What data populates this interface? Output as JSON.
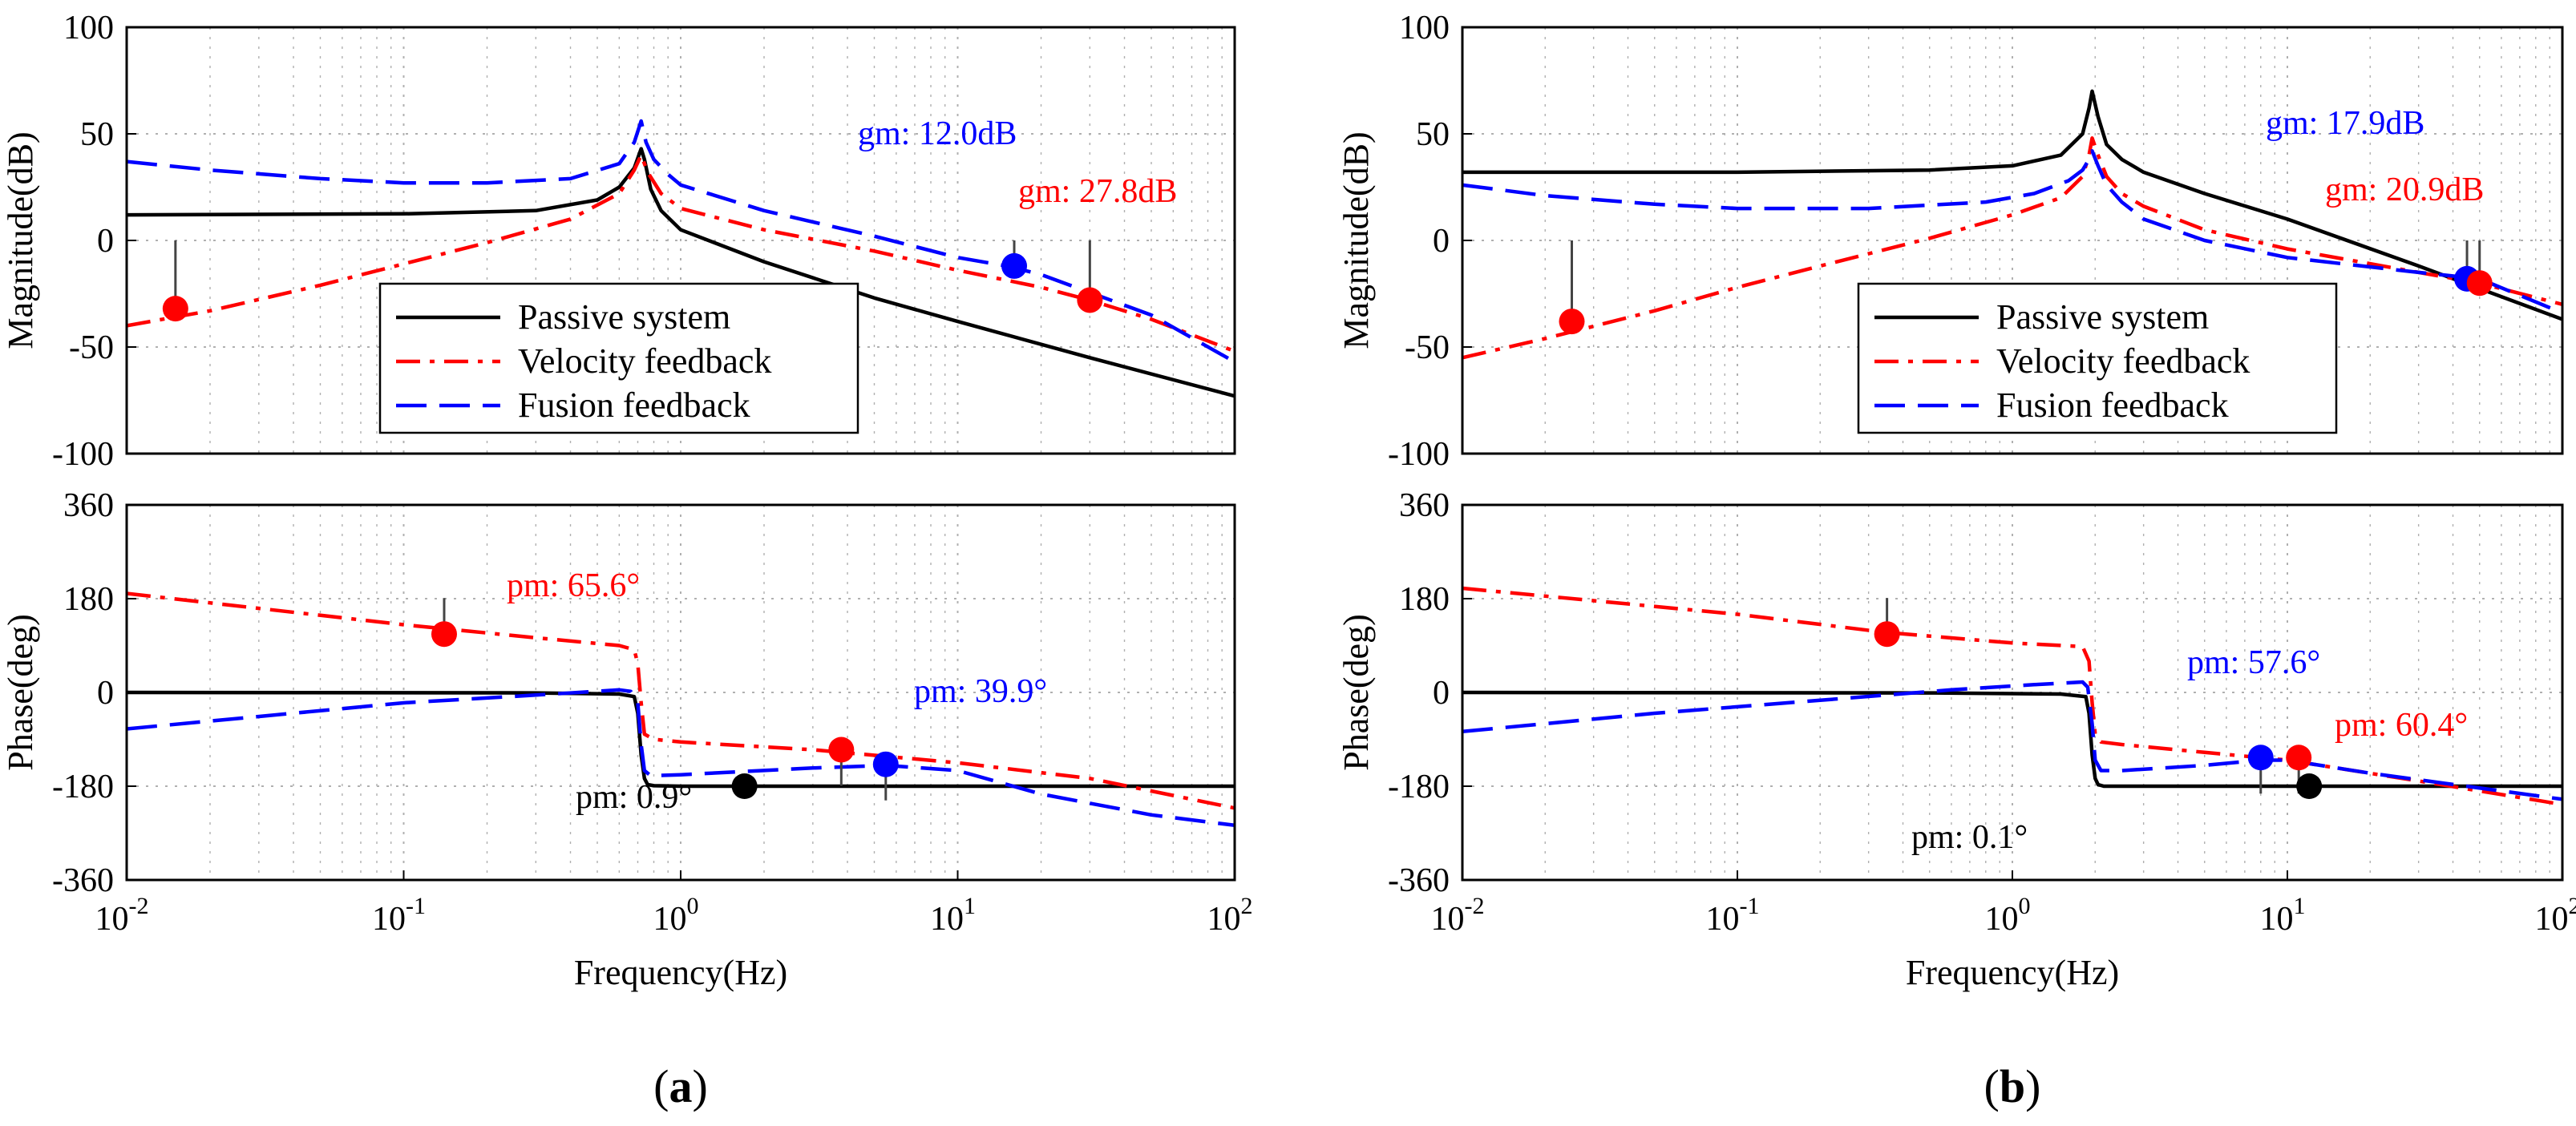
{
  "chart_data": [
    {
      "panel_label": "(a)",
      "panel_letter": "a",
      "type": "line",
      "plots": {
        "magnitude": {
          "ylabel": "Magnitude(dB)",
          "xscale": "log",
          "xlim": [
            0.01,
            100
          ],
          "ylim": [
            -100,
            100
          ],
          "yticks": [
            "100",
            "50",
            "0",
            "-50",
            "-100"
          ],
          "series": [
            {
              "name": "Passive system",
              "color": "#000000",
              "style": "solid",
              "x": [
                0.01,
                0.1,
                0.3,
                0.5,
                0.6,
                0.68,
                0.72,
                0.74,
                0.78,
                0.85,
                1,
                2,
                5,
                10,
                30,
                100
              ],
              "y": [
                12,
                12.5,
                14,
                19,
                25,
                34,
                43,
                38,
                24,
                14,
                5,
                -10,
                -27,
                -38,
                -55,
                -73
              ]
            },
            {
              "name": "Velocity feedback",
              "color": "#ff0000",
              "style": "dashdot",
              "x": [
                0.01,
                0.02,
                0.05,
                0.1,
                0.2,
                0.4,
                0.6,
                0.68,
                0.72,
                0.76,
                0.85,
                1,
                2,
                5,
                10,
                20,
                30,
                50,
                100
              ],
              "y": [
                -40,
                -33,
                -21,
                -11,
                -1,
                10,
                22,
                33,
                40,
                32,
                22,
                15,
                5,
                -5,
                -14,
                -22,
                -28,
                -37,
                -52
              ]
            },
            {
              "name": "Fusion feedback",
              "color": "#0000ff",
              "style": "dashed",
              "x": [
                0.01,
                0.02,
                0.05,
                0.1,
                0.2,
                0.4,
                0.6,
                0.68,
                0.72,
                0.75,
                0.8,
                0.9,
                1,
                2,
                5,
                10,
                15,
                20,
                50,
                100
              ],
              "y": [
                37,
                33,
                29,
                27,
                27,
                29,
                36,
                46,
                56,
                46,
                38,
                31,
                26,
                14,
                2,
                -8,
                -12,
                -16,
                -35,
                -57
              ]
            }
          ],
          "markers": [
            {
              "series": "Velocity feedback",
              "color": "#ff0000",
              "x": 0.015,
              "y": -32
            },
            {
              "series": "Fusion feedback",
              "color": "#0000ff",
              "x": 16,
              "y": -12
            },
            {
              "series": "Velocity feedback",
              "color": "#ff0000",
              "x": 30,
              "y": -28
            }
          ],
          "annotations": [
            {
              "text": "gm: 12.0dB",
              "color": "#0000ff"
            },
            {
              "text": "gm: 27.8dB",
              "color": "#ff0000"
            }
          ],
          "legend_position": "bottom-center"
        },
        "phase": {
          "ylabel": "Phase(deg)",
          "xlabel": "Frequency(Hz)",
          "xscale": "log",
          "xlim": [
            0.01,
            100
          ],
          "ylim": [
            -360,
            360
          ],
          "yticks": [
            "360",
            "180",
            "0",
            "-180",
            "-360"
          ],
          "xticks": [
            {
              "base": "10",
              "exp": "-2"
            },
            {
              "base": "10",
              "exp": "-1"
            },
            {
              "base": "10",
              "exp": "0"
            },
            {
              "base": "10",
              "exp": "1"
            },
            {
              "base": "10",
              "exp": "2"
            }
          ],
          "series": [
            {
              "name": "Passive system",
              "color": "#000000",
              "style": "solid",
              "x": [
                0.01,
                0.3,
                0.6,
                0.68,
                0.7,
                0.72,
                0.74,
                0.76,
                0.8,
                1,
                10,
                100
              ],
              "y": [
                0,
                -1,
                -3,
                -8,
                -40,
                -120,
                -165,
                -177,
                -179,
                -180,
                -180,
                -180
              ]
            },
            {
              "name": "Velocity feedback",
              "color": "#ff0000",
              "style": "dashdot",
              "x": [
                0.01,
                0.1,
                0.3,
                0.6,
                0.68,
                0.7,
                0.72,
                0.74,
                0.8,
                1,
                3,
                10,
                30,
                100
              ],
              "y": [
                190,
                130,
                105,
                90,
                82,
                55,
                -20,
                -80,
                -90,
                -95,
                -110,
                -135,
                -165,
                -222
              ]
            },
            {
              "name": "Fusion feedback",
              "color": "#0000ff",
              "style": "dashed",
              "x": [
                0.01,
                0.1,
                0.3,
                0.6,
                0.66,
                0.7,
                0.72,
                0.74,
                0.78,
                1,
                3,
                5.5,
                10,
                20,
                50,
                100
              ],
              "y": [
                -70,
                -20,
                -5,
                5,
                2,
                -20,
                -100,
                -150,
                -160,
                -158,
                -145,
                -140,
                -150,
                -195,
                -235,
                -255
              ]
            }
          ],
          "markers": [
            {
              "series": "Velocity feedback",
              "color": "#ff0000",
              "x": 0.14,
              "y": 112
            },
            {
              "series": "Velocity feedback",
              "color": "#ff0000",
              "x": 3.8,
              "y": -110
            },
            {
              "series": "Fusion feedback",
              "color": "#0000ff",
              "x": 5.5,
              "y": -138
            },
            {
              "series": "Passive system",
              "color": "#000000",
              "x": 1.7,
              "y": -180
            }
          ],
          "annotations": [
            {
              "text": "pm: 65.6°",
              "color": "#ff0000"
            },
            {
              "text": "pm: 39.9°",
              "color": "#0000ff"
            },
            {
              "text": "pm: 0.9°",
              "color": "#000000"
            }
          ]
        }
      }
    },
    {
      "panel_label": "(b)",
      "panel_letter": "b",
      "type": "line",
      "plots": {
        "magnitude": {
          "ylabel": "Magnitude(dB)",
          "xscale": "log",
          "xlim": [
            0.01,
            100
          ],
          "ylim": [
            -100,
            100
          ],
          "yticks": [
            "100",
            "50",
            "0",
            "-50",
            "-100"
          ],
          "series": [
            {
              "name": "Passive system",
              "color": "#000000",
              "style": "solid",
              "x": [
                0.01,
                0.1,
                0.5,
                1,
                1.5,
                1.8,
                1.9,
                1.95,
                2.05,
                2.2,
                2.5,
                3,
                5,
                10,
                30,
                100
              ],
              "y": [
                32,
                32,
                33,
                35,
                40,
                50,
                62,
                70,
                58,
                45,
                38,
                32,
                22,
                10,
                -12,
                -37
              ]
            },
            {
              "name": "Velocity feedback",
              "color": "#ff0000",
              "style": "dashdot",
              "x": [
                0.01,
                0.02,
                0.05,
                0.1,
                0.2,
                0.5,
                1,
                1.5,
                1.8,
                1.9,
                1.95,
                2.05,
                2.2,
                2.5,
                3,
                5,
                10,
                30,
                50,
                100
              ],
              "y": [
                -55,
                -46,
                -33,
                -22,
                -12,
                1,
                12,
                20,
                30,
                40,
                48,
                40,
                30,
                22,
                16,
                5,
                -4,
                -15,
                -20,
                -30
              ]
            },
            {
              "name": "Fusion feedback",
              "color": "#0000ff",
              "style": "dashed",
              "x": [
                0.01,
                0.02,
                0.05,
                0.1,
                0.3,
                0.8,
                1.2,
                1.6,
                1.8,
                1.9,
                1.95,
                2.05,
                2.2,
                2.5,
                3,
                5,
                10,
                30,
                50,
                100
              ],
              "y": [
                26,
                21,
                17,
                15,
                15,
                18,
                22,
                28,
                33,
                38,
                42,
                35,
                26,
                18,
                10,
                0,
                -8,
                -15,
                -18,
                -34
              ]
            }
          ],
          "markers": [
            {
              "series": "Velocity feedback",
              "color": "#ff0000",
              "x": 0.025,
              "y": -38
            },
            {
              "series": "Fusion feedback",
              "color": "#0000ff",
              "x": 45,
              "y": -18
            },
            {
              "series": "Velocity feedback",
              "color": "#ff0000",
              "x": 50,
              "y": -20
            }
          ],
          "annotations": [
            {
              "text": "gm: 17.9dB",
              "color": "#0000ff"
            },
            {
              "text": "gm: 20.9dB",
              "color": "#ff0000"
            }
          ],
          "legend_position": "bottom-center"
        },
        "phase": {
          "ylabel": "Phase(deg)",
          "xlabel": "Frequency(Hz)",
          "xscale": "log",
          "xlim": [
            0.01,
            100
          ],
          "ylim": [
            -360,
            360
          ],
          "yticks": [
            "360",
            "180",
            "0",
            "-180",
            "-360"
          ],
          "xticks": [
            {
              "base": "10",
              "exp": "-2"
            },
            {
              "base": "10",
              "exp": "-1"
            },
            {
              "base": "10",
              "exp": "0"
            },
            {
              "base": "10",
              "exp": "1"
            },
            {
              "base": "10",
              "exp": "2"
            }
          ],
          "series": [
            {
              "name": "Passive system",
              "color": "#000000",
              "style": "solid",
              "x": [
                0.01,
                0.5,
                1.5,
                1.85,
                1.9,
                1.95,
                2.0,
                2.05,
                2.15,
                3,
                10,
                100
              ],
              "y": [
                0,
                -1,
                -3,
                -8,
                -40,
                -120,
                -165,
                -177,
                -180,
                -180,
                -180,
                -180
              ]
            },
            {
              "name": "Velocity feedback",
              "color": "#ff0000",
              "style": "dashdot",
              "x": [
                0.01,
                0.1,
                0.35,
                1,
                1.8,
                1.9,
                1.95,
                2.0,
                2.1,
                2.5,
                5,
                10,
                30,
                100
              ],
              "y": [
                200,
                150,
                115,
                95,
                88,
                60,
                -20,
                -80,
                -95,
                -100,
                -115,
                -130,
                -170,
                -215
              ]
            },
            {
              "name": "Fusion feedback",
              "color": "#0000ff",
              "style": "dashed",
              "x": [
                0.01,
                0.05,
                0.2,
                0.6,
                1.2,
                1.8,
                1.88,
                1.95,
                2.0,
                2.1,
                2.5,
                5,
                8,
                10,
                20,
                100
              ],
              "y": [
                -75,
                -40,
                -15,
                5,
                15,
                20,
                10,
                -60,
                -130,
                -150,
                -150,
                -140,
                -130,
                -130,
                -155,
                -205
              ]
            }
          ],
          "markers": [
            {
              "series": "Velocity feedback",
              "color": "#ff0000",
              "x": 0.35,
              "y": 112
            },
            {
              "series": "Fusion feedback",
              "color": "#0000ff",
              "x": 8,
              "y": -125
            },
            {
              "series": "Velocity feedback",
              "color": "#ff0000",
              "x": 11,
              "y": -125
            },
            {
              "series": "Passive system",
              "color": "#000000",
              "x": 12,
              "y": -180
            }
          ],
          "annotations": [
            {
              "text": "pm: 57.6°",
              "color": "#0000ff"
            },
            {
              "text": "pm: 60.4°",
              "color": "#ff0000"
            },
            {
              "text": "pm: 0.1°",
              "color": "#000000"
            }
          ]
        }
      }
    }
  ]
}
